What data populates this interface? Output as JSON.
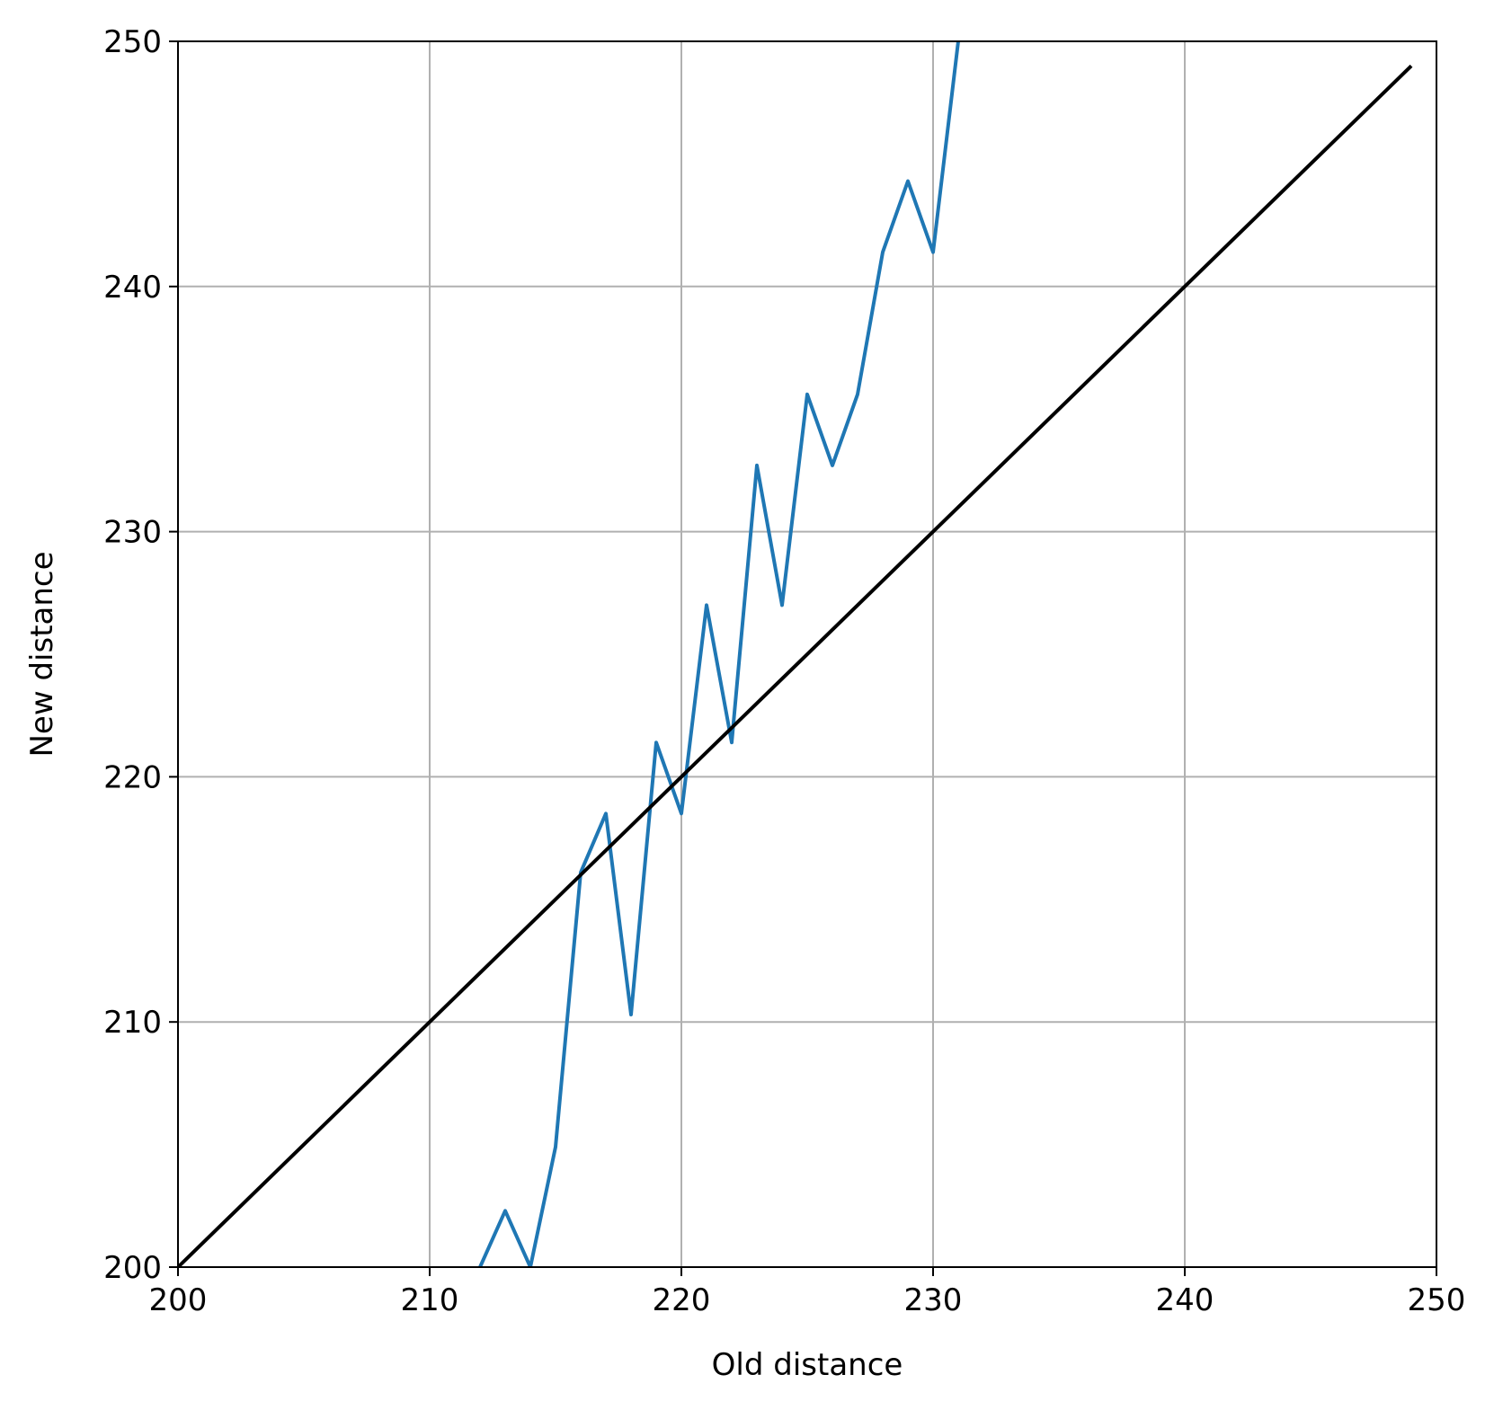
{
  "chart_data": {
    "type": "line",
    "title": "",
    "xlabel": "Old distance",
    "ylabel": "New distance",
    "xlim": [
      200,
      250
    ],
    "ylim": [
      200,
      250
    ],
    "xticks": [
      200,
      210,
      220,
      230,
      240,
      250
    ],
    "yticks": [
      200,
      210,
      220,
      230,
      240,
      250
    ],
    "xtick_labels": [
      "200",
      "210",
      "220",
      "230",
      "240",
      "250"
    ],
    "ytick_labels": [
      "200",
      "210",
      "220",
      "230",
      "240",
      "250"
    ],
    "grid": true,
    "legend": "none",
    "series": [
      {
        "color": "#1f77b4",
        "x": [
          211,
          212,
          213,
          214,
          215,
          216,
          217,
          218,
          219,
          220,
          221,
          222,
          223,
          224,
          225,
          226,
          227,
          228,
          229,
          230,
          231,
          232
        ],
        "y": [
          196.5,
          200.0,
          202.3,
          200.0,
          204.9,
          216.1,
          218.5,
          210.3,
          221.4,
          218.5,
          227.0,
          221.4,
          232.7,
          227.0,
          235.6,
          232.7,
          235.6,
          241.4,
          244.3,
          241.4,
          250.0,
          258.5
        ]
      },
      {
        "color": "#000000",
        "x": [
          200,
          249
        ],
        "y": [
          200,
          249
        ]
      }
    ]
  }
}
